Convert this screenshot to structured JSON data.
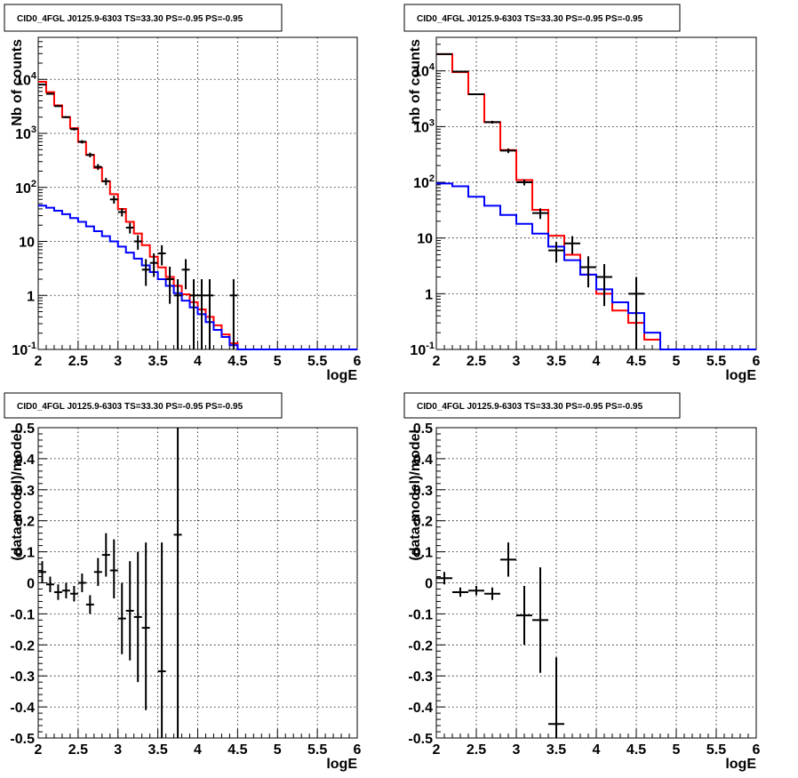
{
  "chart_data": [
    {
      "type": "line",
      "title": "CID0_4FGL J0125.9-6303 TS=33.30 PS=-0.95 PS=-0.95",
      "xlabel": "logE",
      "ylabel": "Nb of counts",
      "xlim": [
        2,
        6
      ],
      "ylim": [
        0.1,
        60000
      ],
      "yscale": "log",
      "grid": true,
      "x_ticks": [
        "2",
        "2.5",
        "3",
        "3.5",
        "4",
        "4.5",
        "5",
        "5.5",
        "6"
      ],
      "y_ticks": [
        {
          "v": 0.1,
          "label": "10^-1"
        },
        {
          "v": 1,
          "label": "1"
        },
        {
          "v": 10,
          "label": "10"
        },
        {
          "v": 100,
          "label": "10^2"
        },
        {
          "v": 1000,
          "label": "10^3"
        },
        {
          "v": 10000,
          "label": "10^4"
        }
      ],
      "bin_width": 0.1,
      "series": [
        {
          "color": "#ff0000",
          "kind": "hist",
          "bin_starts": [
            2.0,
            2.1,
            2.2,
            2.3,
            2.4,
            2.5,
            2.6,
            2.7,
            2.8,
            2.9,
            3.0,
            3.1,
            3.2,
            3.3,
            3.4,
            3.5,
            3.6,
            3.7,
            3.8,
            3.9,
            4.0,
            4.1,
            4.2,
            4.3,
            4.4,
            4.5,
            4.6,
            4.7,
            4.8,
            4.9,
            5.0,
            5.1,
            5.2,
            5.3,
            5.4,
            5.5,
            5.6,
            5.7,
            5.8,
            5.9
          ],
          "values": [
            9000,
            5800,
            3300,
            2000,
            1250,
            690,
            400,
            230,
            130,
            75,
            40,
            23,
            14,
            8.5,
            5.2,
            3.3,
            2.2,
            1.5,
            1.05,
            0.75,
            0.55,
            0.4,
            0.28,
            0.19,
            0.13,
            0.1,
            0.1,
            0.1,
            0.1,
            0.1,
            0.1,
            0.1,
            0.1,
            0.1,
            0.1,
            0.1,
            0.1,
            0.1,
            0.1,
            0.1
          ]
        },
        {
          "color": "#0000ff",
          "kind": "hist",
          "bin_starts": [
            2.0,
            2.1,
            2.2,
            2.3,
            2.4,
            2.5,
            2.6,
            2.7,
            2.8,
            2.9,
            3.0,
            3.1,
            3.2,
            3.3,
            3.4,
            3.5,
            3.6,
            3.7,
            3.8,
            3.9,
            4.0,
            4.1,
            4.2,
            4.3,
            4.4,
            4.5,
            4.6,
            4.7,
            4.8,
            4.9,
            5.0,
            5.1,
            5.2,
            5.3,
            5.4,
            5.5,
            5.6,
            5.7,
            5.8,
            5.9
          ],
          "values": [
            46,
            42,
            37,
            32,
            27,
            23,
            19,
            15.5,
            12.5,
            10,
            8,
            6.2,
            4.8,
            3.6,
            2.7,
            2.0,
            1.5,
            1.1,
            0.8,
            0.6,
            0.45,
            0.32,
            0.23,
            0.17,
            0.12,
            0.1,
            0.1,
            0.1,
            0.1,
            0.1,
            0.1,
            0.1,
            0.1,
            0.1,
            0.1,
            0.1,
            0.1,
            0.1,
            0.1,
            0.1
          ]
        },
        {
          "color": "#000000",
          "kind": "points",
          "points": [
            {
              "x": 2.05,
              "y": 8000,
              "lo": 7800,
              "hi": 8200
            },
            {
              "x": 2.15,
              "y": 5400,
              "lo": 5250,
              "hi": 5550
            },
            {
              "x": 2.25,
              "y": 3200,
              "lo": 3090,
              "hi": 3310
            },
            {
              "x": 2.35,
              "y": 2000,
              "lo": 1910,
              "hi": 2090
            },
            {
              "x": 2.45,
              "y": 1200,
              "lo": 1130,
              "hi": 1270
            },
            {
              "x": 2.55,
              "y": 700,
              "lo": 650,
              "hi": 750
            },
            {
              "x": 2.65,
              "y": 400,
              "lo": 360,
              "hi": 440
            },
            {
              "x": 2.75,
              "y": 240,
              "lo": 210,
              "hi": 270
            },
            {
              "x": 2.85,
              "y": 130,
              "lo": 110,
              "hi": 150
            },
            {
              "x": 2.95,
              "y": 60,
              "lo": 50,
              "hi": 70
            },
            {
              "x": 3.05,
              "y": 35,
              "lo": 29,
              "hi": 41
            },
            {
              "x": 3.15,
              "y": 18,
              "lo": 14,
              "hi": 22
            },
            {
              "x": 3.25,
              "y": 10,
              "lo": 7,
              "hi": 13
            },
            {
              "x": 3.35,
              "y": 3,
              "lo": 1.5,
              "hi": 4.7
            },
            {
              "x": 3.45,
              "y": 4,
              "lo": 2.2,
              "hi": 6
            },
            {
              "x": 3.55,
              "y": 6,
              "lo": 3.6,
              "hi": 8.5
            },
            {
              "x": 3.65,
              "y": 2,
              "lo": 0.7,
              "hi": 3.4
            },
            {
              "x": 3.75,
              "y": 1,
              "lo": 0.1,
              "hi": 2
            },
            {
              "x": 3.85,
              "y": 3,
              "lo": 1.3,
              "hi": 4.7
            },
            {
              "x": 3.95,
              "y": 1,
              "lo": 0.1,
              "hi": 2
            },
            {
              "x": 4.05,
              "y": 1,
              "lo": 0.1,
              "hi": 2
            },
            {
              "x": 4.15,
              "y": 1,
              "lo": 0.1,
              "hi": 2
            },
            {
              "x": 4.45,
              "y": 1,
              "lo": 0.1,
              "hi": 2
            }
          ]
        }
      ]
    },
    {
      "type": "line",
      "title": "CID0_4FGL J0125.9-6303 TS=33.30 PS=-0.95 PS=-0.95",
      "xlabel": "logE",
      "ylabel": "nb of counts",
      "xlim": [
        2,
        6
      ],
      "ylim": [
        0.1,
        40000
      ],
      "yscale": "log",
      "grid": true,
      "x_ticks": [
        "2",
        "2.5",
        "3",
        "3.5",
        "4",
        "4.5",
        "5",
        "5.5",
        "6"
      ],
      "y_ticks": [
        {
          "v": 0.1,
          "label": "10^-1"
        },
        {
          "v": 1,
          "label": "1"
        },
        {
          "v": 10,
          "label": "10"
        },
        {
          "v": 100,
          "label": "10^2"
        },
        {
          "v": 1000,
          "label": "10^3"
        },
        {
          "v": 10000,
          "label": "10^4"
        }
      ],
      "bin_width": 0.2,
      "series": [
        {
          "color": "#ff0000",
          "kind": "hist",
          "bin_starts": [
            2.0,
            2.2,
            2.4,
            2.6,
            2.8,
            3.0,
            3.2,
            3.4,
            3.6,
            3.8,
            4.0,
            4.2,
            4.4,
            4.6,
            4.8,
            5.0,
            5.2,
            5.4,
            5.6,
            5.8
          ],
          "values": [
            20000,
            9500,
            3800,
            1200,
            380,
            110,
            32,
            11,
            5,
            2.2,
            1,
            0.5,
            0.3,
            0.15,
            0.1,
            0.1,
            0.1,
            0.1,
            0.1,
            0.1
          ]
        },
        {
          "color": "#0000ff",
          "kind": "hist",
          "bin_starts": [
            2.0,
            2.2,
            2.4,
            2.6,
            2.8,
            3.0,
            3.2,
            3.4,
            3.6,
            3.8,
            4.0,
            4.2,
            4.4,
            4.6,
            4.8,
            5.0,
            5.2,
            5.4,
            5.6,
            5.8
          ],
          "values": [
            95,
            85,
            55,
            38,
            26,
            18,
            12,
            7,
            4,
            2.2,
            1.2,
            0.7,
            0.45,
            0.2,
            0.1,
            0.1,
            0.1,
            0.1,
            0.1,
            0.1
          ]
        },
        {
          "color": "#000000",
          "kind": "points",
          "points": [
            {
              "x": 2.1,
              "y": 20000,
              "lo": 19700,
              "hi": 20300
            },
            {
              "x": 2.3,
              "y": 9700,
              "lo": 9500,
              "hi": 9900
            },
            {
              "x": 2.5,
              "y": 3800,
              "lo": 3680,
              "hi": 3920
            },
            {
              "x": 2.7,
              "y": 1200,
              "lo": 1130,
              "hi": 1270
            },
            {
              "x": 2.9,
              "y": 370,
              "lo": 335,
              "hi": 405
            },
            {
              "x": 3.1,
              "y": 100,
              "lo": 88,
              "hi": 112
            },
            {
              "x": 3.3,
              "y": 28,
              "lo": 22,
              "hi": 34
            },
            {
              "x": 3.5,
              "y": 6,
              "lo": 3.6,
              "hi": 8.5
            },
            {
              "x": 3.7,
              "y": 8,
              "lo": 5.2,
              "hi": 10.8
            },
            {
              "x": 3.9,
              "y": 3,
              "lo": 1.3,
              "hi": 4.7
            },
            {
              "x": 4.1,
              "y": 2,
              "lo": 0.6,
              "hi": 3.4
            },
            {
              "x": 4.5,
              "y": 1,
              "lo": 0.1,
              "hi": 2
            }
          ]
        }
      ]
    },
    {
      "type": "scatter",
      "title": "CID0_4FGL J0125.9-6303 TS=33.30 PS=-0.95 PS=-0.95",
      "xlabel": "logE",
      "ylabel": "(data-model)/model",
      "xlim": [
        2,
        6
      ],
      "ylim": [
        -0.5,
        0.5
      ],
      "yscale": "linear",
      "grid": true,
      "x_ticks": [
        "2",
        "2.5",
        "3",
        "3.5",
        "4",
        "4.5",
        "5",
        "5.5",
        "6"
      ],
      "y_ticks": [
        {
          "v": -0.5,
          "label": "-0.5"
        },
        {
          "v": -0.4,
          "label": "-0.4"
        },
        {
          "v": -0.3,
          "label": "-0.3"
        },
        {
          "v": -0.2,
          "label": "-0.2"
        },
        {
          "v": -0.1,
          "label": "-0.1"
        },
        {
          "v": 0,
          "label": "0"
        },
        {
          "v": 0.1,
          "label": "0.1"
        },
        {
          "v": 0.2,
          "label": "0.2"
        },
        {
          "v": 0.3,
          "label": "0.3"
        },
        {
          "v": 0.4,
          "label": "0.4"
        },
        {
          "v": 0.5,
          "label": "0.5"
        }
      ],
      "bin_width": 0.1,
      "series": [
        {
          "color": "#000000",
          "kind": "points",
          "points": [
            {
              "x": 2.05,
              "y": 0.035,
              "lo": 0.0,
              "hi": 0.07
            },
            {
              "x": 2.15,
              "y": -0.005,
              "lo": -0.03,
              "hi": 0.02
            },
            {
              "x": 2.25,
              "y": -0.03,
              "lo": -0.055,
              "hi": -0.005
            },
            {
              "x": 2.35,
              "y": -0.025,
              "lo": -0.05,
              "hi": 0.0
            },
            {
              "x": 2.45,
              "y": -0.035,
              "lo": -0.06,
              "hi": -0.01
            },
            {
              "x": 2.55,
              "y": 0.0,
              "lo": -0.03,
              "hi": 0.03
            },
            {
              "x": 2.65,
              "y": -0.07,
              "lo": -0.1,
              "hi": -0.04
            },
            {
              "x": 2.75,
              "y": 0.035,
              "lo": -0.01,
              "hi": 0.08
            },
            {
              "x": 2.85,
              "y": 0.09,
              "lo": 0.02,
              "hi": 0.16
            },
            {
              "x": 2.95,
              "y": 0.04,
              "lo": -0.05,
              "hi": 0.14
            },
            {
              "x": 3.05,
              "y": -0.115,
              "lo": -0.23,
              "hi": 0.0
            },
            {
              "x": 3.15,
              "y": -0.09,
              "lo": -0.25,
              "hi": 0.07
            },
            {
              "x": 3.25,
              "y": -0.11,
              "lo": -0.32,
              "hi": 0.1
            },
            {
              "x": 3.35,
              "y": -0.145,
              "lo": -0.41,
              "hi": 0.13
            },
            {
              "x": 3.55,
              "y": -0.285,
              "lo": -0.5,
              "hi": 0.13
            },
            {
              "x": 3.75,
              "y": 0.155,
              "lo": -0.5,
              "hi": 0.5
            }
          ]
        }
      ]
    },
    {
      "type": "scatter",
      "title": "CID0_4FGL J0125.9-6303 TS=33.30 PS=-0.95 PS=-0.95",
      "xlabel": "logE",
      "ylabel": "(data-model)/model",
      "xlim": [
        2,
        6
      ],
      "ylim": [
        -0.5,
        0.5
      ],
      "yscale": "linear",
      "grid": true,
      "x_ticks": [
        "2",
        "2.5",
        "3",
        "3.5",
        "4",
        "4.5",
        "5",
        "5.5",
        "6"
      ],
      "y_ticks": [
        {
          "v": -0.5,
          "label": "-0.5"
        },
        {
          "v": -0.4,
          "label": "-0.4"
        },
        {
          "v": -0.3,
          "label": "-0.3"
        },
        {
          "v": -0.2,
          "label": "-0.2"
        },
        {
          "v": -0.1,
          "label": "-0.1"
        },
        {
          "v": 0,
          "label": "0"
        },
        {
          "v": 0.1,
          "label": "0.1"
        },
        {
          "v": 0.2,
          "label": "0.2"
        },
        {
          "v": 0.3,
          "label": "0.3"
        },
        {
          "v": 0.4,
          "label": "0.4"
        },
        {
          "v": 0.5,
          "label": "0.5"
        }
      ],
      "bin_width": 0.2,
      "series": [
        {
          "color": "#000000",
          "kind": "points",
          "points": [
            {
              "x": 2.1,
              "y": 0.015,
              "lo": -0.005,
              "hi": 0.035
            },
            {
              "x": 2.3,
              "y": -0.03,
              "lo": -0.045,
              "hi": -0.015
            },
            {
              "x": 2.5,
              "y": -0.025,
              "lo": -0.04,
              "hi": -0.01
            },
            {
              "x": 2.7,
              "y": -0.035,
              "lo": -0.055,
              "hi": -0.015
            },
            {
              "x": 2.9,
              "y": 0.075,
              "lo": 0.02,
              "hi": 0.13
            },
            {
              "x": 3.1,
              "y": -0.105,
              "lo": -0.2,
              "hi": -0.01
            },
            {
              "x": 3.3,
              "y": -0.12,
              "lo": -0.29,
              "hi": 0.05
            },
            {
              "x": 3.5,
              "y": -0.455,
              "lo": -0.5,
              "hi": -0.24
            }
          ]
        }
      ]
    }
  ]
}
